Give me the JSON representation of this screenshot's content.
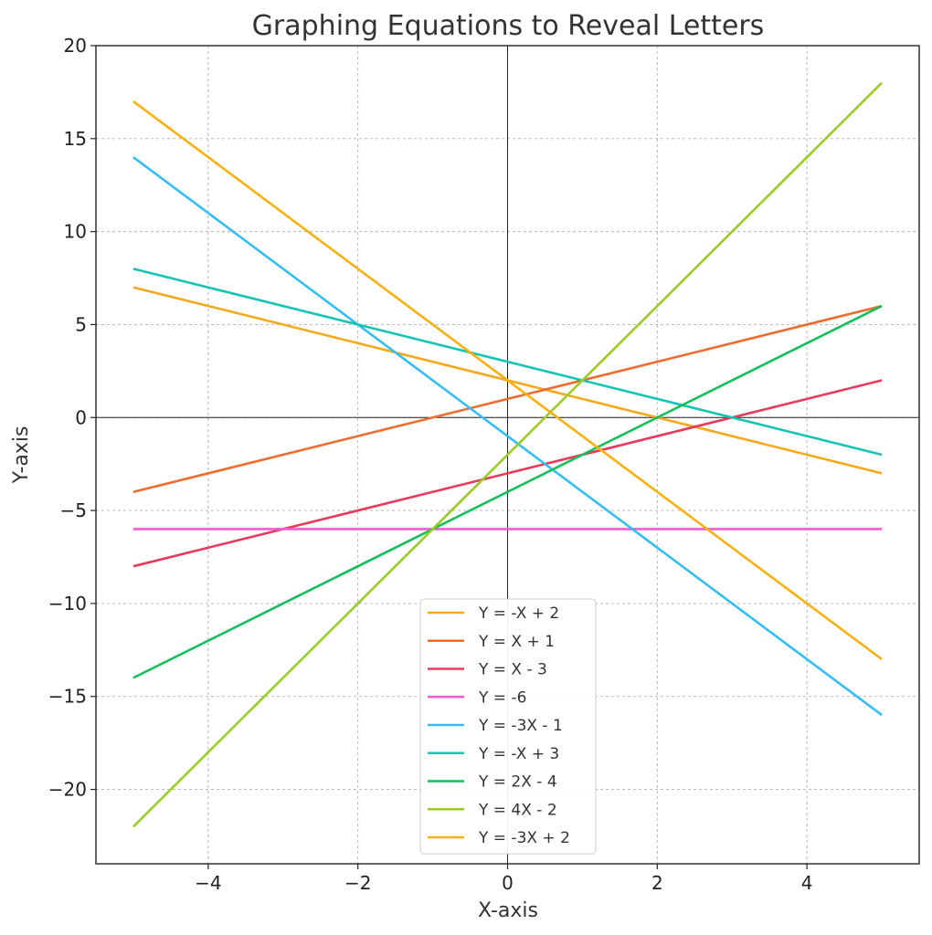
{
  "chart_data": {
    "type": "line",
    "title": "Graphing Equations to Reveal Letters",
    "xlabel": "X-axis",
    "ylabel": "Y-axis",
    "xlim": [
      -5.5,
      5.5
    ],
    "ylim": [
      -24,
      20
    ],
    "xticks": [
      -4,
      -2,
      0,
      2,
      4
    ],
    "yticks": [
      -20,
      -15,
      -10,
      -5,
      0,
      5,
      10,
      15,
      20
    ],
    "xtick_labels": [
      "−4",
      "−2",
      "0",
      "2",
      "4"
    ],
    "ytick_labels": [
      "−20",
      "−15",
      "−10",
      "−5",
      "0",
      "5",
      "10",
      "15",
      "20"
    ],
    "grid": true,
    "legend_position": "bottom-center",
    "x": [
      -5,
      5
    ],
    "series": [
      {
        "name": "Y = -X + 2",
        "values": [
          7,
          -3
        ],
        "color": "#F7A81B"
      },
      {
        "name": "Y = X + 1",
        "values": [
          -4,
          6
        ],
        "color": "#EE6C2E"
      },
      {
        "name": "Y = X - 3",
        "values": [
          -8,
          2
        ],
        "color": "#E83A5A"
      },
      {
        "name": "Y = -6",
        "values": [
          -6,
          -6
        ],
        "color": "#F25CD2"
      },
      {
        "name": "Y = -3X - 1",
        "values": [
          14,
          -16
        ],
        "color": "#35BEF5"
      },
      {
        "name": "Y = -X + 3",
        "values": [
          8,
          -2
        ],
        "color": "#16C4B4"
      },
      {
        "name": "Y = 2X - 4",
        "values": [
          -14,
          6
        ],
        "color": "#14BF5A"
      },
      {
        "name": "Y = 4X - 2",
        "values": [
          -22,
          18
        ],
        "color": "#9BCB26"
      },
      {
        "name": "Y = -3X + 2",
        "values": [
          17,
          -13
        ],
        "color": "#FAB10F"
      }
    ]
  }
}
